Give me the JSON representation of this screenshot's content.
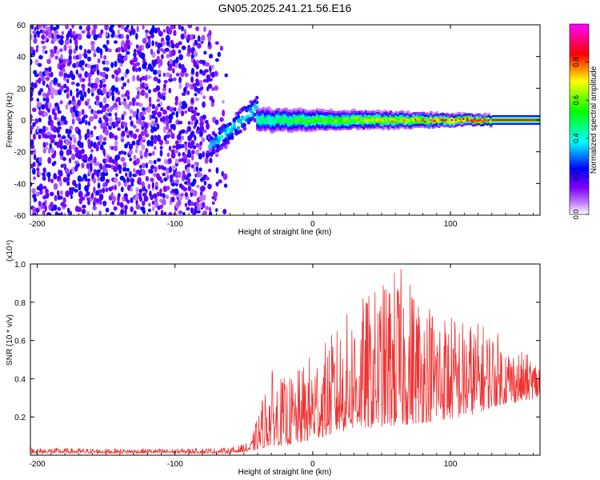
{
  "title": "GN05.2025.241.21.56.E16",
  "chart_data": [
    {
      "type": "heatmap",
      "title": "GN05.2025.241.21.56.E16",
      "xlabel": "Height of straight line (km)",
      "ylabel": "Frequency (Hz)",
      "xlim": [
        -205,
        165
      ],
      "ylim": [
        -60,
        60
      ],
      "xticks": [
        -200,
        -100,
        0,
        100
      ],
      "yticks": [
        -60,
        -40,
        -20,
        0,
        20,
        40,
        60
      ],
      "colorbar": {
        "label": "Normalized spectral amplitude",
        "range": [
          0,
          1
        ],
        "ticks": [
          0.0,
          0.2,
          0.4,
          0.6,
          0.8
        ],
        "colors": [
          "#ffffff",
          "#a000ff",
          "#0000ff",
          "#00ffff",
          "#00ff00",
          "#ffff00",
          "#ff0000",
          "#ff00ff"
        ]
      },
      "regions": [
        {
          "x_range": [
            -205,
            -60
          ],
          "description": "broadband noise",
          "amplitude": [
            0.05,
            0.25
          ],
          "freq_range": [
            -60,
            60
          ]
        },
        {
          "x_range": [
            -75,
            -40
          ],
          "description": "signal onset, tilted",
          "freq_start": -17,
          "freq_end": 8,
          "amplitude": 0.35
        },
        {
          "x_range": [
            -40,
            130
          ],
          "description": "narrowing signal",
          "center_freq": 0,
          "width_start": 7,
          "width_end": 3,
          "amplitude_start": 0.5,
          "amplitude_end": 0.9
        },
        {
          "x_range": [
            130,
            165
          ],
          "description": "steady line",
          "center_freq": 0,
          "width": 2,
          "amplitude": 1.0
        }
      ]
    },
    {
      "type": "line",
      "title": "",
      "xlabel": "Height of straight line (km)",
      "ylabel": "SNR (10 * v/v)",
      "scale_label": "(x10⁴)",
      "xlim": [
        -205,
        165
      ],
      "ylim": [
        0,
        1.0
      ],
      "xticks": [
        -200,
        -100,
        0,
        100
      ],
      "yticks": [
        0.2,
        0.4,
        0.6,
        0.8,
        1.0
      ],
      "color": "#ee3333",
      "envelope": {
        "x": [
          -205,
          -150,
          -100,
          -60,
          -45,
          -35,
          -30,
          -20,
          -10,
          0,
          10,
          20,
          30,
          40,
          50,
          60,
          70,
          80,
          90,
          100,
          110,
          120,
          130,
          140,
          150,
          165
        ],
        "upper": [
          0.04,
          0.035,
          0.035,
          0.04,
          0.07,
          0.35,
          0.45,
          0.4,
          0.45,
          0.55,
          0.6,
          0.7,
          0.8,
          0.85,
          0.9,
          1.0,
          0.95,
          0.85,
          0.8,
          0.75,
          0.72,
          0.7,
          0.68,
          0.6,
          0.55,
          0.5
        ],
        "lower": [
          0.01,
          0.01,
          0.01,
          0.01,
          0.02,
          0.04,
          0.05,
          0.05,
          0.06,
          0.08,
          0.1,
          0.12,
          0.14,
          0.14,
          0.15,
          0.15,
          0.16,
          0.17,
          0.18,
          0.19,
          0.2,
          0.22,
          0.25,
          0.27,
          0.28,
          0.3
        ]
      }
    }
  ]
}
